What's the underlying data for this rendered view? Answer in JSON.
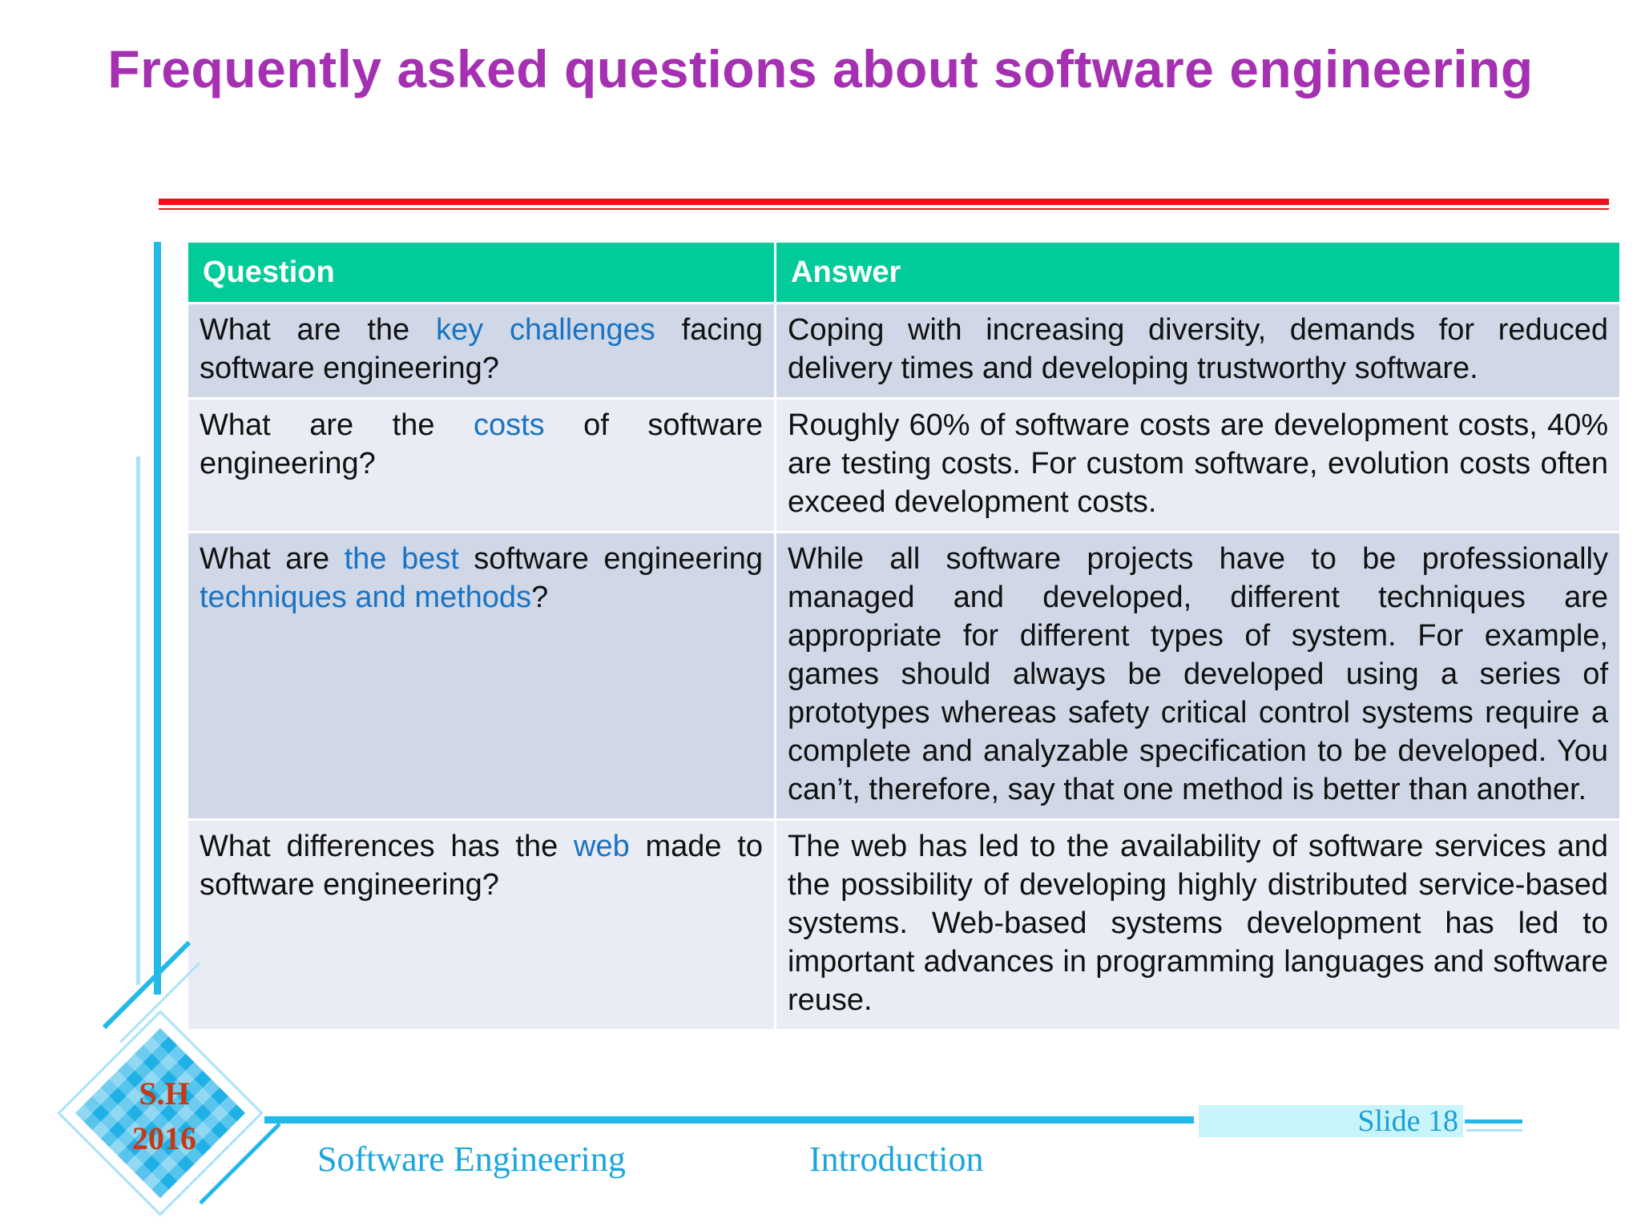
{
  "slide_title": "Frequently asked questions about software engineering",
  "table": {
    "headers": {
      "question": "Question",
      "answer": "Answer"
    },
    "rows": [
      {
        "question": {
          "pre": "What are the ",
          "hl": "key challenges",
          "post": " facing software engineering?",
          "hl2": "",
          "post2": ""
        },
        "answer": "Coping with increasing diversity, demands for reduced delivery times and developing trustworthy software."
      },
      {
        "question": {
          "pre": "What are the ",
          "hl": "costs",
          "post": " of software engineering?",
          "hl2": "",
          "post2": ""
        },
        "answer": "Roughly 60% of software costs are development costs, 40% are testing costs. For custom software, evolution costs often exceed development costs."
      },
      {
        "question": {
          "pre": "What are ",
          "hl": "the best",
          "post": " software engineering ",
          "hl2": "techniques and methods",
          "post2": "?"
        },
        "answer": "While all software projects have to be professionally managed and developed, different techniques are appropriate for different types of system. For example, games should always be developed using a series of prototypes whereas safety critical control systems require a complete and analyzable specification to be developed. You can’t, therefore, say that one method is better than another."
      },
      {
        "question": {
          "pre": "What differences has the ",
          "hl": "web",
          "post": " made to software engineering?",
          "hl2": "",
          "post2": ""
        },
        "answer": "The web has led to the availability of software services and the possibility of developing highly distributed service-based systems. Web-based systems development has led to important advances in programming languages and software reuse."
      }
    ]
  },
  "badge": {
    "line1": "S.H",
    "line2": "2016"
  },
  "slide_number": "Slide 18",
  "footer": {
    "course": "Software Engineering",
    "topic": "Introduction"
  },
  "colors": {
    "title": "#a530b2",
    "header_bg": "#02cb9a",
    "highlight": "#1a73c2",
    "accent": "#22b8e8",
    "rule": "#e8141a"
  }
}
